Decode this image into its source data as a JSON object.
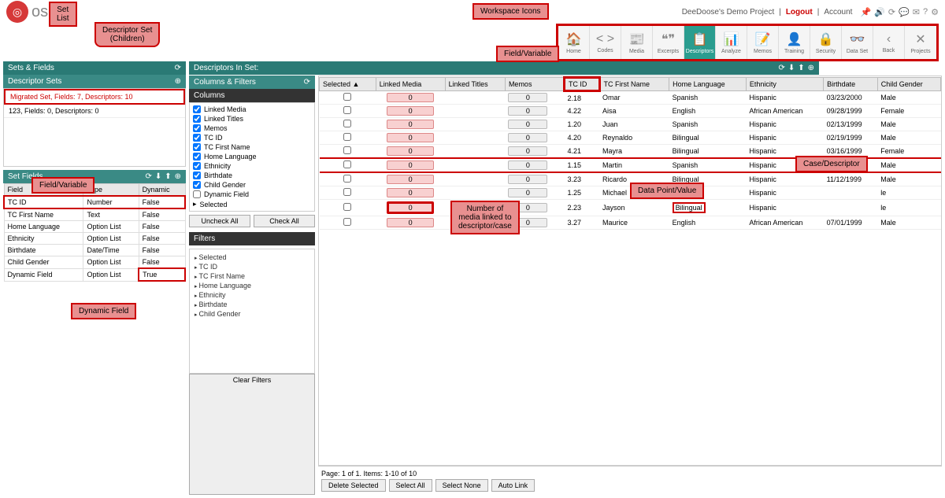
{
  "brand_suffix": "ose",
  "topbar": {
    "project": "DeeDoose's Demo Project",
    "logout": "Logout",
    "account": "Account"
  },
  "workspace": [
    {
      "icon": "🏠",
      "label": "Home"
    },
    {
      "icon": "< >",
      "label": "Codes"
    },
    {
      "icon": "📰",
      "label": "Media"
    },
    {
      "icon": "❝❞",
      "label": "Excerpts"
    },
    {
      "icon": "📋",
      "label": "Descriptors",
      "active": true
    },
    {
      "icon": "📊",
      "label": "Analyze"
    },
    {
      "icon": "📝",
      "label": "Memos"
    },
    {
      "icon": "👤",
      "label": "Training"
    },
    {
      "icon": "🔒",
      "label": "Security"
    },
    {
      "icon": "👓",
      "label": "Data Set"
    },
    {
      "icon": "‹",
      "label": "Back"
    },
    {
      "icon": "✕",
      "label": "Projects"
    }
  ],
  "panels": {
    "sets_fields": "Sets & Fields",
    "descriptor_sets": "Descriptor Sets",
    "set_fields": "Set Fields",
    "descriptors_in_set": "Descriptors In Set:",
    "columns_filters": "Columns & Filters",
    "columns": "Columns",
    "filters": "Filters"
  },
  "sets": [
    {
      "label": "Migrated Set, Fields: 7, Descriptors: 10",
      "hl": true
    },
    {
      "label": "123, Fields: 0, Descriptors: 0"
    }
  ],
  "fields_headers": {
    "field": "Field",
    "type": "Type",
    "dynamic": "Dynamic"
  },
  "fields": [
    {
      "field": "TC ID",
      "type": "Number",
      "dynamic": "False",
      "hl_row": true
    },
    {
      "field": "TC First Name",
      "type": "Text",
      "dynamic": "False"
    },
    {
      "field": "Home Language",
      "type": "Option List",
      "dynamic": "False"
    },
    {
      "field": "Ethnicity",
      "type": "Option List",
      "dynamic": "False"
    },
    {
      "field": "Birthdate",
      "type": "Date/Time",
      "dynamic": "False"
    },
    {
      "field": "Child Gender",
      "type": "Option List",
      "dynamic": "False"
    },
    {
      "field": "Dynamic Field",
      "type": "Option List",
      "dynamic": "True",
      "hl_cell": true
    }
  ],
  "column_checks": [
    {
      "label": "Linked Media",
      "checked": true
    },
    {
      "label": "Linked Titles",
      "checked": true
    },
    {
      "label": "Memos",
      "checked": true
    },
    {
      "label": "TC ID",
      "checked": true
    },
    {
      "label": "TC First Name",
      "checked": true
    },
    {
      "label": "Home Language",
      "checked": true
    },
    {
      "label": "Ethnicity",
      "checked": true
    },
    {
      "label": "Birthdate",
      "checked": true
    },
    {
      "label": "Child Gender",
      "checked": true
    },
    {
      "label": "Dynamic Field",
      "checked": false
    }
  ],
  "selected_label": "Selected",
  "buttons": {
    "uncheck_all": "Uncheck All",
    "check_all": "Check All",
    "clear_filters": "Clear Filters",
    "delete_selected": "Delete Selected",
    "select_all": "Select All",
    "select_none": "Select None",
    "auto_link": "Auto Link"
  },
  "filter_items": [
    "Selected",
    "TC ID",
    "TC First Name",
    "Home Language",
    "Ethnicity",
    "Birthdate",
    "Child Gender"
  ],
  "grid_headers": [
    "Selected",
    "Linked Media",
    "Linked Titles",
    "Memos",
    "TC ID",
    "TC First Name",
    "Home Language",
    "Ethnicity",
    "Birthdate",
    "Child Gender"
  ],
  "hl_header_index": 4,
  "rows": [
    {
      "lm": "0",
      "mem": "0",
      "tcid": "2.18",
      "name": "Omar",
      "lang": "Spanish",
      "eth": "Hispanic",
      "bd": "03/23/2000",
      "gen": "Male"
    },
    {
      "lm": "0",
      "mem": "0",
      "tcid": "4.22",
      "name": "Aisa",
      "lang": "English",
      "eth": "African American",
      "bd": "09/28/1999",
      "gen": "Female"
    },
    {
      "lm": "0",
      "mem": "0",
      "tcid": "1.20",
      "name": "Juan",
      "lang": "Spanish",
      "eth": "Hispanic",
      "bd": "02/13/1999",
      "gen": "Male"
    },
    {
      "lm": "0",
      "mem": "0",
      "tcid": "4.20",
      "name": "Reynaldo",
      "lang": "Bilingual",
      "eth": "Hispanic",
      "bd": "02/19/1999",
      "gen": "Male"
    },
    {
      "lm": "0",
      "mem": "0",
      "tcid": "4.21",
      "name": "Mayra",
      "lang": "Bilingual",
      "eth": "Hispanic",
      "bd": "03/16/1999",
      "gen": "Female"
    },
    {
      "lm": "0",
      "mem": "0",
      "tcid": "1.15",
      "name": "Martin",
      "lang": "Spanish",
      "eth": "Hispanic",
      "bd": "01/17/1999",
      "gen": "Male",
      "hl_row": true
    },
    {
      "lm": "0",
      "mem": "0",
      "tcid": "3.23",
      "name": "Ricardo",
      "lang": "Bilingual",
      "eth": "Hispanic",
      "bd": "11/12/1999",
      "gen": "Male"
    },
    {
      "lm": "0",
      "mem": "0",
      "tcid": "1.25",
      "name": "Michael",
      "lang": "Spanish",
      "eth": "Hispanic",
      "bd": "",
      "gen": "le"
    },
    {
      "lm": "0",
      "mem": "0",
      "tcid": "2.23",
      "name": "Jayson",
      "lang": "Bilingual",
      "eth": "Hispanic",
      "bd": "",
      "gen": "le",
      "hl_lang": true,
      "hl_lm": true
    },
    {
      "lm": "0",
      "mem": "0",
      "tcid": "3.27",
      "name": "Maurice",
      "lang": "English",
      "eth": "African American",
      "bd": "07/01/1999",
      "gen": "Male"
    }
  ],
  "page_info": "Page: 1 of 1. Items: 1-10 of 10",
  "callouts": {
    "set_list": "Set\nList",
    "descriptor_set": "Descriptor Set\n(Children)",
    "workspace_icons": "Workspace Icons",
    "field_variable": "Field/Variable",
    "field_variable2": "Field/Variable",
    "dynamic_field": "Dynamic Field",
    "media_linked": "Number of\nmedia linked to\ndescriptor/case",
    "data_point": "Data Point/Value",
    "case_descriptor": "Case/Descriptor"
  }
}
